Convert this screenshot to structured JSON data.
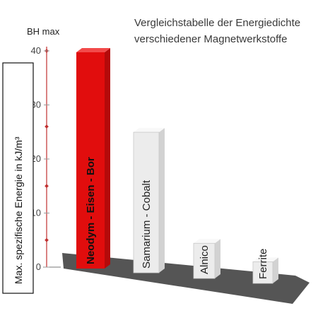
{
  "chart_data": {
    "type": "bar",
    "title_lines": [
      "Vergleichstabelle der Energiedichte",
      "verschiedener Magnetwerkstoffe"
    ],
    "axis_top_label": "BH max",
    "ylabel": "Max. spezifische Energie in kJ/m³",
    "xlabel": "",
    "ylim": [
      0,
      40
    ],
    "yticks": [
      0,
      10,
      20,
      30,
      40
    ],
    "categories": [
      "Neodym - Eisen - Bor",
      "Samarium - Cobalt",
      "Alnico",
      "Ferrite"
    ],
    "values": [
      40,
      26,
      6.5,
      4
    ],
    "colors": {
      "highlight_bar": "#e10d0d",
      "other_bars": "#ececec",
      "floor": "#555555",
      "axis": "#c03030"
    },
    "grid": false
  }
}
